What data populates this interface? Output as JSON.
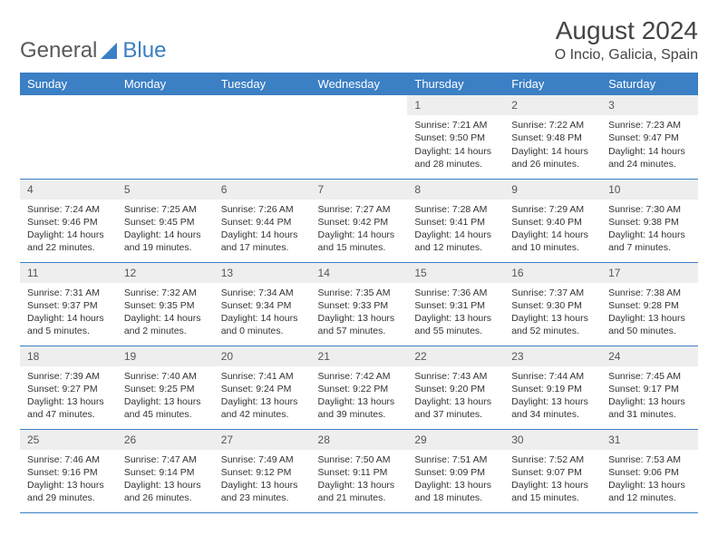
{
  "brand": {
    "part1": "General",
    "part2": "Blue"
  },
  "title": "August 2024",
  "location": "O Incio, Galicia, Spain",
  "colors": {
    "header_bg": "#3b7fc4",
    "header_fg": "#ffffff",
    "daynum_bg": "#eeeeee",
    "text": "#333333",
    "row_border": "#3b7fc4"
  },
  "typography": {
    "title_fontsize": 28,
    "location_fontsize": 16,
    "weekday_fontsize": 13,
    "cell_fontsize": 10.5
  },
  "weekdays": [
    "Sunday",
    "Monday",
    "Tuesday",
    "Wednesday",
    "Thursday",
    "Friday",
    "Saturday"
  ],
  "weeks": [
    [
      {
        "empty": true
      },
      {
        "empty": true
      },
      {
        "empty": true
      },
      {
        "empty": true
      },
      {
        "day": "1",
        "sunrise": "Sunrise: 7:21 AM",
        "sunset": "Sunset: 9:50 PM",
        "daylight1": "Daylight: 14 hours",
        "daylight2": "and 28 minutes."
      },
      {
        "day": "2",
        "sunrise": "Sunrise: 7:22 AM",
        "sunset": "Sunset: 9:48 PM",
        "daylight1": "Daylight: 14 hours",
        "daylight2": "and 26 minutes."
      },
      {
        "day": "3",
        "sunrise": "Sunrise: 7:23 AM",
        "sunset": "Sunset: 9:47 PM",
        "daylight1": "Daylight: 14 hours",
        "daylight2": "and 24 minutes."
      }
    ],
    [
      {
        "day": "4",
        "sunrise": "Sunrise: 7:24 AM",
        "sunset": "Sunset: 9:46 PM",
        "daylight1": "Daylight: 14 hours",
        "daylight2": "and 22 minutes."
      },
      {
        "day": "5",
        "sunrise": "Sunrise: 7:25 AM",
        "sunset": "Sunset: 9:45 PM",
        "daylight1": "Daylight: 14 hours",
        "daylight2": "and 19 minutes."
      },
      {
        "day": "6",
        "sunrise": "Sunrise: 7:26 AM",
        "sunset": "Sunset: 9:44 PM",
        "daylight1": "Daylight: 14 hours",
        "daylight2": "and 17 minutes."
      },
      {
        "day": "7",
        "sunrise": "Sunrise: 7:27 AM",
        "sunset": "Sunset: 9:42 PM",
        "daylight1": "Daylight: 14 hours",
        "daylight2": "and 15 minutes."
      },
      {
        "day": "8",
        "sunrise": "Sunrise: 7:28 AM",
        "sunset": "Sunset: 9:41 PM",
        "daylight1": "Daylight: 14 hours",
        "daylight2": "and 12 minutes."
      },
      {
        "day": "9",
        "sunrise": "Sunrise: 7:29 AM",
        "sunset": "Sunset: 9:40 PM",
        "daylight1": "Daylight: 14 hours",
        "daylight2": "and 10 minutes."
      },
      {
        "day": "10",
        "sunrise": "Sunrise: 7:30 AM",
        "sunset": "Sunset: 9:38 PM",
        "daylight1": "Daylight: 14 hours",
        "daylight2": "and 7 minutes."
      }
    ],
    [
      {
        "day": "11",
        "sunrise": "Sunrise: 7:31 AM",
        "sunset": "Sunset: 9:37 PM",
        "daylight1": "Daylight: 14 hours",
        "daylight2": "and 5 minutes."
      },
      {
        "day": "12",
        "sunrise": "Sunrise: 7:32 AM",
        "sunset": "Sunset: 9:35 PM",
        "daylight1": "Daylight: 14 hours",
        "daylight2": "and 2 minutes."
      },
      {
        "day": "13",
        "sunrise": "Sunrise: 7:34 AM",
        "sunset": "Sunset: 9:34 PM",
        "daylight1": "Daylight: 14 hours",
        "daylight2": "and 0 minutes."
      },
      {
        "day": "14",
        "sunrise": "Sunrise: 7:35 AM",
        "sunset": "Sunset: 9:33 PM",
        "daylight1": "Daylight: 13 hours",
        "daylight2": "and 57 minutes."
      },
      {
        "day": "15",
        "sunrise": "Sunrise: 7:36 AM",
        "sunset": "Sunset: 9:31 PM",
        "daylight1": "Daylight: 13 hours",
        "daylight2": "and 55 minutes."
      },
      {
        "day": "16",
        "sunrise": "Sunrise: 7:37 AM",
        "sunset": "Sunset: 9:30 PM",
        "daylight1": "Daylight: 13 hours",
        "daylight2": "and 52 minutes."
      },
      {
        "day": "17",
        "sunrise": "Sunrise: 7:38 AM",
        "sunset": "Sunset: 9:28 PM",
        "daylight1": "Daylight: 13 hours",
        "daylight2": "and 50 minutes."
      }
    ],
    [
      {
        "day": "18",
        "sunrise": "Sunrise: 7:39 AM",
        "sunset": "Sunset: 9:27 PM",
        "daylight1": "Daylight: 13 hours",
        "daylight2": "and 47 minutes."
      },
      {
        "day": "19",
        "sunrise": "Sunrise: 7:40 AM",
        "sunset": "Sunset: 9:25 PM",
        "daylight1": "Daylight: 13 hours",
        "daylight2": "and 45 minutes."
      },
      {
        "day": "20",
        "sunrise": "Sunrise: 7:41 AM",
        "sunset": "Sunset: 9:24 PM",
        "daylight1": "Daylight: 13 hours",
        "daylight2": "and 42 minutes."
      },
      {
        "day": "21",
        "sunrise": "Sunrise: 7:42 AM",
        "sunset": "Sunset: 9:22 PM",
        "daylight1": "Daylight: 13 hours",
        "daylight2": "and 39 minutes."
      },
      {
        "day": "22",
        "sunrise": "Sunrise: 7:43 AM",
        "sunset": "Sunset: 9:20 PM",
        "daylight1": "Daylight: 13 hours",
        "daylight2": "and 37 minutes."
      },
      {
        "day": "23",
        "sunrise": "Sunrise: 7:44 AM",
        "sunset": "Sunset: 9:19 PM",
        "daylight1": "Daylight: 13 hours",
        "daylight2": "and 34 minutes."
      },
      {
        "day": "24",
        "sunrise": "Sunrise: 7:45 AM",
        "sunset": "Sunset: 9:17 PM",
        "daylight1": "Daylight: 13 hours",
        "daylight2": "and 31 minutes."
      }
    ],
    [
      {
        "day": "25",
        "sunrise": "Sunrise: 7:46 AM",
        "sunset": "Sunset: 9:16 PM",
        "daylight1": "Daylight: 13 hours",
        "daylight2": "and 29 minutes."
      },
      {
        "day": "26",
        "sunrise": "Sunrise: 7:47 AM",
        "sunset": "Sunset: 9:14 PM",
        "daylight1": "Daylight: 13 hours",
        "daylight2": "and 26 minutes."
      },
      {
        "day": "27",
        "sunrise": "Sunrise: 7:49 AM",
        "sunset": "Sunset: 9:12 PM",
        "daylight1": "Daylight: 13 hours",
        "daylight2": "and 23 minutes."
      },
      {
        "day": "28",
        "sunrise": "Sunrise: 7:50 AM",
        "sunset": "Sunset: 9:11 PM",
        "daylight1": "Daylight: 13 hours",
        "daylight2": "and 21 minutes."
      },
      {
        "day": "29",
        "sunrise": "Sunrise: 7:51 AM",
        "sunset": "Sunset: 9:09 PM",
        "daylight1": "Daylight: 13 hours",
        "daylight2": "and 18 minutes."
      },
      {
        "day": "30",
        "sunrise": "Sunrise: 7:52 AM",
        "sunset": "Sunset: 9:07 PM",
        "daylight1": "Daylight: 13 hours",
        "daylight2": "and 15 minutes."
      },
      {
        "day": "31",
        "sunrise": "Sunrise: 7:53 AM",
        "sunset": "Sunset: 9:06 PM",
        "daylight1": "Daylight: 13 hours",
        "daylight2": "and 12 minutes."
      }
    ]
  ]
}
